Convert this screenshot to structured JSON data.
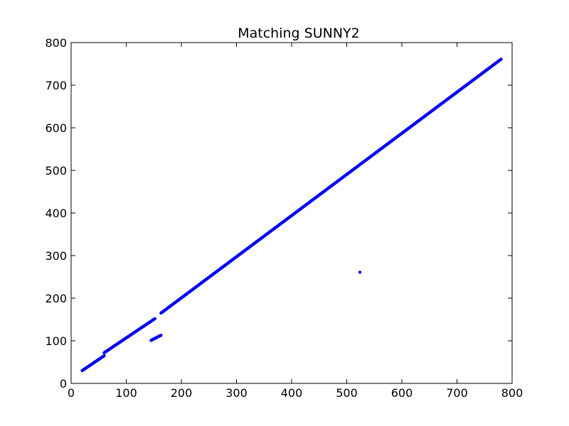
{
  "chart_data": {
    "type": "scatter",
    "title": "Matching SUNNY2",
    "xlabel": "",
    "ylabel": "",
    "xlim": [
      0,
      800
    ],
    "ylim": [
      0,
      800
    ],
    "xticks": [
      0,
      100,
      200,
      300,
      400,
      500,
      600,
      700,
      800
    ],
    "yticks": [
      0,
      100,
      200,
      300,
      400,
      500,
      600,
      700,
      800
    ],
    "grid": false,
    "legend": "none",
    "marker_color": "#0000ee",
    "series": [
      {
        "segments": [
          {
            "x_start": 20,
            "x_end": 60,
            "y_start": 30,
            "y_end": 65,
            "n": 42
          },
          {
            "x_start": 60,
            "x_end": 152,
            "y_start": 72,
            "y_end": 152,
            "n": 90
          },
          {
            "x_start": 145,
            "x_end": 163,
            "y_start": 101,
            "y_end": 113,
            "n": 18
          },
          {
            "x_start": 163,
            "x_end": 780,
            "y_start": 165,
            "y_end": 761,
            "n": 600
          }
        ],
        "outliers": [
          {
            "x": 524,
            "y": 261
          }
        ]
      }
    ]
  }
}
